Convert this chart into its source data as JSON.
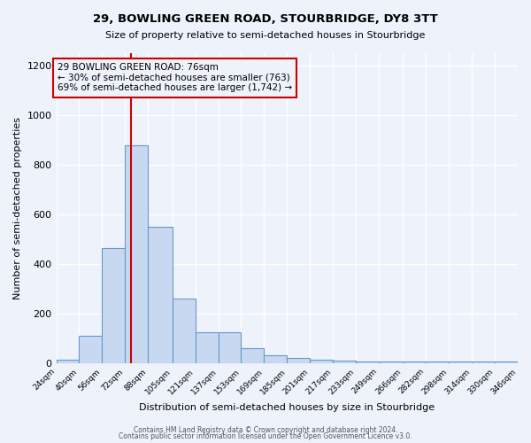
{
  "title1": "29, BOWLING GREEN ROAD, STOURBRIDGE, DY8 3TT",
  "title2": "Size of property relative to semi-detached houses in Stourbridge",
  "xlabel": "Distribution of semi-detached houses by size in Stourbridge",
  "ylabel": "Number of semi-detached properties",
  "bar_values": [
    15,
    110,
    465,
    880,
    550,
    260,
    125,
    125,
    60,
    30,
    20,
    15,
    10,
    5,
    5,
    5,
    5,
    5,
    5,
    5
  ],
  "bin_edges": [
    24,
    40,
    56,
    72,
    88,
    105,
    121,
    137,
    153,
    169,
    185,
    201,
    217,
    233,
    249,
    266,
    282,
    298,
    314,
    330,
    346
  ],
  "tick_labels": [
    "24sqm",
    "40sqm",
    "56sqm",
    "72sqm",
    "88sqm",
    "105sqm",
    "121sqm",
    "137sqm",
    "153sqm",
    "169sqm",
    "185sqm",
    "201sqm",
    "217sqm",
    "233sqm",
    "249sqm",
    "266sqm",
    "282sqm",
    "298sqm",
    "314sqm",
    "330sqm",
    "346sqm"
  ],
  "vline_x": 76,
  "bar_color": "#c8d8f0",
  "bar_edge_color": "#6699cc",
  "vline_color": "#cc0000",
  "annotation_box_color": "#cc0000",
  "annotation_title": "29 BOWLING GREEN ROAD: 76sqm",
  "annotation_line1": "← 30% of semi-detached houses are smaller (763)",
  "annotation_line2": "69% of semi-detached houses are larger (1,742) →",
  "ylim": [
    0,
    1250
  ],
  "yticks": [
    0,
    200,
    400,
    600,
    800,
    1000,
    1200
  ],
  "footer1": "Contains HM Land Registry data © Crown copyright and database right 2024.",
  "footer2": "Contains public sector information licensed under the Open Government Licence v3.0.",
  "background_color": "#eef2fa"
}
